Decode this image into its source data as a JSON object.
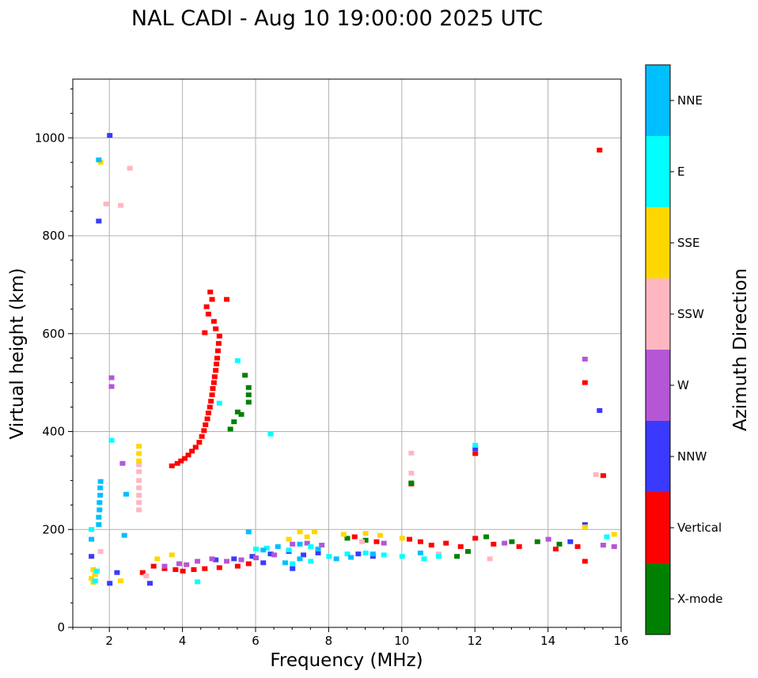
{
  "chart_data": {
    "type": "scatter",
    "title": "NAL CADI - Aug 10 19:00:00 2025 UTC",
    "xlabel": "Frequency (MHz)",
    "ylabel": "Virtual height (km)",
    "xlim": [
      1,
      16
    ],
    "ylim": [
      0,
      1120
    ],
    "xticks": [
      2,
      4,
      6,
      8,
      10,
      12,
      14,
      16
    ],
    "yticks": [
      0,
      200,
      400,
      600,
      800,
      1000
    ],
    "grid": true,
    "colorbar": {
      "label": "Azimuth Direction",
      "categories": [
        {
          "name": "X-mode",
          "color": "#008000"
        },
        {
          "name": "Vertical",
          "color": "#ff0000"
        },
        {
          "name": "NNW",
          "color": "#3a3aff"
        },
        {
          "name": "W",
          "color": "#b556d6"
        },
        {
          "name": "SSW",
          "color": "#ffb6c1"
        },
        {
          "name": "SSE",
          "color": "#ffd700"
        },
        {
          "name": "E",
          "color": "#00ffff"
        },
        {
          "name": "NNE",
          "color": "#00bfff"
        }
      ]
    },
    "series": [
      {
        "name": "Vertical",
        "points": [
          [
            3.7,
            330
          ],
          [
            3.85,
            335
          ],
          [
            3.95,
            340
          ],
          [
            4.05,
            345
          ],
          [
            4.15,
            352
          ],
          [
            4.25,
            360
          ],
          [
            4.35,
            368
          ],
          [
            4.45,
            378
          ],
          [
            4.52,
            390
          ],
          [
            4.58,
            402
          ],
          [
            4.62,
            414
          ],
          [
            4.67,
            426
          ],
          [
            4.7,
            438
          ],
          [
            4.74,
            450
          ],
          [
            4.77,
            462
          ],
          [
            4.8,
            475
          ],
          [
            4.82,
            488
          ],
          [
            4.85,
            500
          ],
          [
            4.87,
            512
          ],
          [
            4.9,
            525
          ],
          [
            4.92,
            538
          ],
          [
            4.94,
            550
          ],
          [
            4.96,
            565
          ],
          [
            4.98,
            580
          ],
          [
            5.0,
            595
          ],
          [
            4.9,
            610
          ],
          [
            4.85,
            625
          ],
          [
            4.7,
            640
          ],
          [
            4.65,
            655
          ],
          [
            4.8,
            670
          ],
          [
            4.75,
            685
          ],
          [
            5.2,
            670
          ],
          [
            4.6,
            602
          ],
          [
            3.2,
            125
          ],
          [
            3.5,
            120
          ],
          [
            3.8,
            118
          ],
          [
            4.0,
            115
          ],
          [
            4.3,
            118
          ],
          [
            4.6,
            120
          ],
          [
            5.0,
            122
          ],
          [
            5.5,
            125
          ],
          [
            10.2,
            180
          ],
          [
            10.5,
            175
          ],
          [
            10.8,
            168
          ],
          [
            11.2,
            172
          ],
          [
            11.6,
            165
          ],
          [
            12.0,
            182
          ],
          [
            12.5,
            170
          ],
          [
            13.2,
            165
          ],
          [
            14.2,
            160
          ],
          [
            14.8,
            165
          ],
          [
            15.0,
            135
          ],
          [
            15.0,
            500
          ],
          [
            12.0,
            355
          ],
          [
            10.25,
            293
          ],
          [
            15.4,
            975
          ],
          [
            15.5,
            310
          ],
          [
            8.7,
            185
          ],
          [
            9.3,
            175
          ],
          [
            2.9,
            112
          ],
          [
            5.8,
            130
          ]
        ]
      },
      {
        "name": "X-mode",
        "points": [
          [
            5.3,
            405
          ],
          [
            5.4,
            420
          ],
          [
            5.5,
            440
          ],
          [
            5.6,
            435
          ],
          [
            5.8,
            460
          ],
          [
            5.8,
            475
          ],
          [
            5.8,
            490
          ],
          [
            5.7,
            515
          ],
          [
            10.25,
            295
          ],
          [
            11.5,
            145
          ],
          [
            11.8,
            155
          ],
          [
            13.0,
            175
          ],
          [
            13.7,
            175
          ],
          [
            14.3,
            170
          ],
          [
            12.3,
            185
          ],
          [
            8.5,
            182
          ],
          [
            9.0,
            178
          ]
        ]
      },
      {
        "name": "NNW",
        "points": [
          [
            1.7,
            830
          ],
          [
            2.0,
            1005
          ],
          [
            4.9,
            138
          ],
          [
            5.4,
            140
          ],
          [
            5.9,
            145
          ],
          [
            6.4,
            150
          ],
          [
            6.9,
            155
          ],
          [
            7.3,
            148
          ],
          [
            7.7,
            152
          ],
          [
            6.2,
            132
          ],
          [
            15.4,
            443
          ],
          [
            15.0,
            210
          ],
          [
            14.6,
            175
          ],
          [
            8.8,
            150
          ],
          [
            9.2,
            145
          ],
          [
            3.1,
            90
          ],
          [
            2.0,
            90
          ],
          [
            2.2,
            112
          ],
          [
            12.0,
            365
          ],
          [
            1.5,
            145
          ],
          [
            7.0,
            120
          ]
        ]
      },
      {
        "name": "W",
        "points": [
          [
            4.4,
            135
          ],
          [
            4.8,
            140
          ],
          [
            5.2,
            135
          ],
          [
            5.6,
            138
          ],
          [
            6.0,
            142
          ],
          [
            6.5,
            148
          ],
          [
            7.0,
            170
          ],
          [
            7.4,
            172
          ],
          [
            7.8,
            168
          ],
          [
            3.9,
            130
          ],
          [
            15.0,
            548
          ],
          [
            15.5,
            168
          ],
          [
            15.8,
            165
          ],
          [
            2.05,
            510
          ],
          [
            2.05,
            492
          ],
          [
            12.8,
            172
          ],
          [
            14.0,
            180
          ],
          [
            9.5,
            172
          ],
          [
            2.35,
            335
          ],
          [
            3.5,
            125
          ],
          [
            4.1,
            128
          ]
        ]
      },
      {
        "name": "SSW",
        "points": [
          [
            2.8,
            240
          ],
          [
            2.8,
            255
          ],
          [
            2.8,
            270
          ],
          [
            2.8,
            285
          ],
          [
            2.8,
            300
          ],
          [
            2.8,
            318
          ],
          [
            10.25,
            315
          ],
          [
            10.25,
            356
          ],
          [
            1.9,
            865
          ],
          [
            2.55,
            938
          ],
          [
            2.3,
            862
          ],
          [
            1.75,
            155
          ],
          [
            12.4,
            140
          ],
          [
            8.9,
            175
          ],
          [
            11.0,
            150
          ],
          [
            15.3,
            312
          ],
          [
            2.8,
            332
          ],
          [
            3.0,
            105
          ]
        ]
      },
      {
        "name": "SSE",
        "points": [
          [
            1.5,
            100
          ],
          [
            1.55,
            92
          ],
          [
            2.3,
            95
          ],
          [
            2.8,
            340
          ],
          [
            2.8,
            355
          ],
          [
            2.8,
            370
          ],
          [
            3.3,
            140
          ],
          [
            3.7,
            148
          ],
          [
            7.2,
            195
          ],
          [
            7.6,
            195
          ],
          [
            8.4,
            190
          ],
          [
            9.0,
            192
          ],
          [
            9.4,
            188
          ],
          [
            10.0,
            182
          ],
          [
            1.75,
            950
          ],
          [
            6.9,
            180
          ],
          [
            7.4,
            185
          ],
          [
            15.0,
            205
          ],
          [
            15.8,
            190
          ],
          [
            1.55,
            118
          ],
          [
            1.6,
            108
          ]
        ]
      },
      {
        "name": "E",
        "points": [
          [
            6.0,
            160
          ],
          [
            6.3,
            162
          ],
          [
            6.9,
            158
          ],
          [
            7.5,
            165
          ],
          [
            8.0,
            145
          ],
          [
            8.5,
            150
          ],
          [
            9.0,
            152
          ],
          [
            9.5,
            148
          ],
          [
            10.0,
            145
          ],
          [
            10.6,
            140
          ],
          [
            11.0,
            145
          ],
          [
            12.0,
            372
          ],
          [
            5.5,
            545
          ],
          [
            6.4,
            395
          ],
          [
            7.0,
            130
          ],
          [
            7.5,
            135
          ],
          [
            1.5,
            200
          ],
          [
            1.6,
            95
          ],
          [
            4.4,
            93
          ],
          [
            1.65,
            115
          ],
          [
            5.0,
            458
          ],
          [
            2.05,
            382
          ],
          [
            15.6,
            185
          ]
        ]
      },
      {
        "name": "NNE",
        "points": [
          [
            1.7,
            210
          ],
          [
            1.7,
            225
          ],
          [
            1.72,
            240
          ],
          [
            1.72,
            255
          ],
          [
            1.74,
            270
          ],
          [
            1.74,
            285
          ],
          [
            1.75,
            298
          ],
          [
            1.5,
            180
          ],
          [
            6.2,
            158
          ],
          [
            6.6,
            165
          ],
          [
            7.2,
            170
          ],
          [
            7.7,
            160
          ],
          [
            8.2,
            140
          ],
          [
            8.6,
            143
          ],
          [
            9.2,
            150
          ],
          [
            10.5,
            152
          ],
          [
            2.45,
            272
          ],
          [
            2.4,
            188
          ],
          [
            1.7,
            955
          ],
          [
            5.8,
            195
          ],
          [
            6.8,
            132
          ],
          [
            7.2,
            140
          ]
        ]
      }
    ]
  }
}
